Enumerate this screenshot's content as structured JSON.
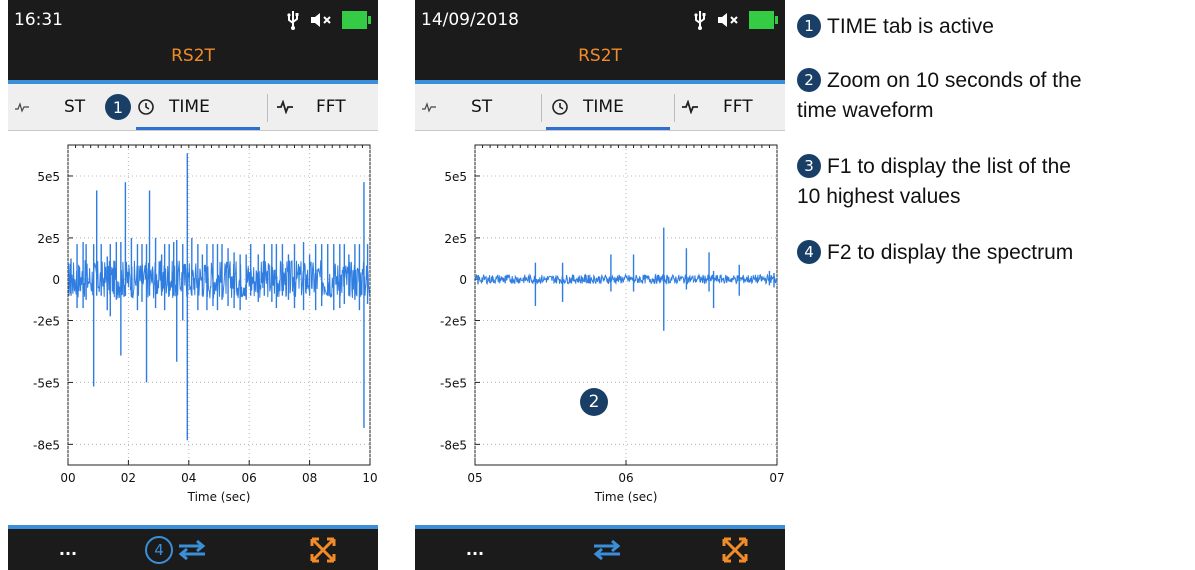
{
  "screens": [
    {
      "clock": "16:31",
      "device": "RS2T",
      "tabs": {
        "st": "ST",
        "time": "TIME",
        "fft": "FFT"
      },
      "plot": {
        "yticks": [
          "5e5",
          "2e5",
          "0",
          "-2e5",
          "-5e5",
          "-8e5"
        ],
        "xticks": [
          "00",
          "02",
          "04",
          "06",
          "08",
          "10"
        ],
        "xlabel": "Time (sec)"
      },
      "bottom": {
        "more": "..."
      }
    },
    {
      "clock": "14/09/2018",
      "device": "RS2T",
      "tabs": {
        "st": "ST",
        "time": "TIME",
        "fft": "FFT"
      },
      "plot": {
        "yticks": [
          "5e5",
          "2e5",
          "0",
          "-2e5",
          "-5e5",
          "-8e5"
        ],
        "xticks": [
          "05",
          "06",
          "07"
        ],
        "xlabel": "Time (sec)"
      },
      "bottom": {
        "more": "..."
      }
    }
  ],
  "badges": {
    "b1": "1",
    "b2": "2",
    "b3": "3",
    "b4": "4"
  },
  "legend": {
    "item1": "TIME tab is active",
    "item2_line1": "Zoom on 10 seconds of the",
    "item2_line2": "time waveform",
    "item3_line1": "F1 to display the list of the",
    "item3_line2": "10 highest values",
    "item4": "F2 to display the spectrum"
  },
  "colors": {
    "header_bg": "#1b1b1b",
    "title_orange": "#f28c28",
    "accent_blue": "#3a8fd8",
    "waveform": "#2f7de0",
    "battery": "#33cc44",
    "badge": "#1a3f66"
  },
  "icons": [
    "usb-icon",
    "mute-icon",
    "battery-icon",
    "trend-icon",
    "clock-icon",
    "pulse-icon",
    "swap-arrows-icon",
    "expand-icon"
  ],
  "chart_data": [
    {
      "type": "line",
      "xlabel": "Time (sec)",
      "xlim": [
        0,
        10
      ],
      "ylim": [
        -900000,
        650000
      ],
      "yticks": [
        500000,
        200000,
        0,
        -200000,
        -500000,
        -800000
      ],
      "spikes": [
        {
          "x": 0.1,
          "hi": 100000,
          "lo": -80000
        },
        {
          "x": 0.3,
          "hi": 170000,
          "lo": -140000
        },
        {
          "x": 0.5,
          "hi": 180000,
          "lo": -140000
        },
        {
          "x": 0.6,
          "hi": 170000,
          "lo": -100000
        },
        {
          "x": 0.85,
          "hi": 170000,
          "lo": -520000
        },
        {
          "x": 0.95,
          "hi": 430000,
          "lo": -80000
        },
        {
          "x": 1.1,
          "hi": 170000,
          "lo": -80000
        },
        {
          "x": 1.3,
          "hi": 110000,
          "lo": -150000
        },
        {
          "x": 1.4,
          "hi": 170000,
          "lo": -180000
        },
        {
          "x": 1.6,
          "hi": 180000,
          "lo": -100000
        },
        {
          "x": 1.75,
          "hi": 180000,
          "lo": -370000
        },
        {
          "x": 1.9,
          "hi": 470000,
          "lo": -80000
        },
        {
          "x": 2.1,
          "hi": 200000,
          "lo": -80000
        },
        {
          "x": 2.3,
          "hi": 170000,
          "lo": -150000
        },
        {
          "x": 2.45,
          "hi": 170000,
          "lo": -110000
        },
        {
          "x": 2.6,
          "hi": 170000,
          "lo": -500000
        },
        {
          "x": 2.7,
          "hi": 430000,
          "lo": -80000
        },
        {
          "x": 2.9,
          "hi": 200000,
          "lo": -140000
        },
        {
          "x": 3.1,
          "hi": 120000,
          "lo": -80000
        },
        {
          "x": 3.2,
          "hi": 170000,
          "lo": -150000
        },
        {
          "x": 3.35,
          "hi": 170000,
          "lo": -80000
        },
        {
          "x": 3.5,
          "hi": 180000,
          "lo": -80000
        },
        {
          "x": 3.6,
          "hi": 190000,
          "lo": -400000
        },
        {
          "x": 3.8,
          "hi": 170000,
          "lo": -200000
        },
        {
          "x": 3.95,
          "hi": 610000,
          "lo": -780000
        },
        {
          "x": 4.1,
          "hi": 200000,
          "lo": -80000
        },
        {
          "x": 4.3,
          "hi": 170000,
          "lo": -150000
        },
        {
          "x": 4.45,
          "hi": 120000,
          "lo": -80000
        },
        {
          "x": 4.6,
          "hi": 170000,
          "lo": -150000
        },
        {
          "x": 4.8,
          "hi": 170000,
          "lo": -130000
        },
        {
          "x": 4.95,
          "hi": 170000,
          "lo": -150000
        },
        {
          "x": 5.1,
          "hi": 170000,
          "lo": -100000
        },
        {
          "x": 5.3,
          "hi": 150000,
          "lo": -130000
        },
        {
          "x": 5.5,
          "hi": 130000,
          "lo": -140000
        },
        {
          "x": 5.7,
          "hi": 120000,
          "lo": -150000
        },
        {
          "x": 5.9,
          "hi": 120000,
          "lo": -100000
        },
        {
          "x": 6.05,
          "hi": 170000,
          "lo": -80000
        },
        {
          "x": 6.3,
          "hi": 120000,
          "lo": -110000
        },
        {
          "x": 6.5,
          "hi": 170000,
          "lo": -80000
        },
        {
          "x": 6.75,
          "hi": 170000,
          "lo": -110000
        },
        {
          "x": 6.9,
          "hi": 170000,
          "lo": -140000
        },
        {
          "x": 7.1,
          "hi": 170000,
          "lo": -80000
        },
        {
          "x": 7.3,
          "hi": 120000,
          "lo": -100000
        },
        {
          "x": 7.5,
          "hi": 170000,
          "lo": -140000
        },
        {
          "x": 7.8,
          "hi": 180000,
          "lo": -150000
        },
        {
          "x": 8.0,
          "hi": 120000,
          "lo": -80000
        },
        {
          "x": 8.2,
          "hi": 170000,
          "lo": -150000
        },
        {
          "x": 8.4,
          "hi": 170000,
          "lo": -130000
        },
        {
          "x": 8.6,
          "hi": 170000,
          "lo": -80000
        },
        {
          "x": 8.8,
          "hi": 170000,
          "lo": -150000
        },
        {
          "x": 9.0,
          "hi": 170000,
          "lo": -140000
        },
        {
          "x": 9.15,
          "hi": 170000,
          "lo": -120000
        },
        {
          "x": 9.3,
          "hi": 120000,
          "lo": -80000
        },
        {
          "x": 9.5,
          "hi": 170000,
          "lo": -100000
        },
        {
          "x": 9.65,
          "hi": 170000,
          "lo": -150000
        },
        {
          "x": 9.8,
          "hi": 470000,
          "lo": -720000
        },
        {
          "x": 9.92,
          "hi": 170000,
          "lo": -120000
        }
      ]
    },
    {
      "type": "line",
      "xlabel": "Time (sec)",
      "xlim": [
        5,
        7
      ],
      "ylim": [
        -900000,
        650000
      ],
      "yticks": [
        500000,
        200000,
        0,
        -200000,
        -500000,
        -800000
      ],
      "spikes": [
        {
          "x": 5.02,
          "hi": 20000,
          "lo": -25000
        },
        {
          "x": 5.2,
          "hi": 15000,
          "lo": -20000
        },
        {
          "x": 5.4,
          "hi": 80000,
          "lo": -130000
        },
        {
          "x": 5.58,
          "hi": 80000,
          "lo": -110000
        },
        {
          "x": 5.75,
          "hi": 20000,
          "lo": -20000
        },
        {
          "x": 5.9,
          "hi": 120000,
          "lo": -60000
        },
        {
          "x": 6.05,
          "hi": 120000,
          "lo": -60000
        },
        {
          "x": 6.25,
          "hi": 250000,
          "lo": -250000
        },
        {
          "x": 6.4,
          "hi": 150000,
          "lo": -50000
        },
        {
          "x": 6.55,
          "hi": 130000,
          "lo": -60000
        },
        {
          "x": 6.58,
          "hi": 40000,
          "lo": -140000
        },
        {
          "x": 6.75,
          "hi": 70000,
          "lo": -80000
        },
        {
          "x": 6.95,
          "hi": 40000,
          "lo": -30000
        },
        {
          "x": 6.98,
          "hi": 30000,
          "lo": -40000
        }
      ]
    }
  ]
}
